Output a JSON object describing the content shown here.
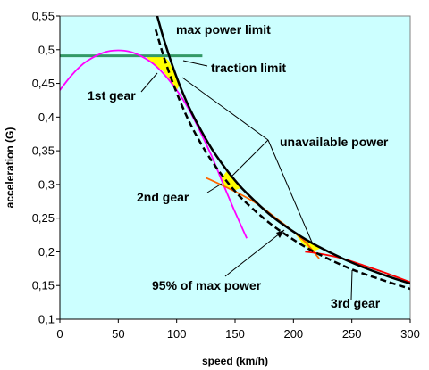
{
  "chart_data": {
    "type": "line",
    "title": "",
    "xlabel": "speed (km/h)",
    "ylabel": "acceleration (G)",
    "xlim": [
      0,
      300
    ],
    "ylim": [
      0.1,
      0.55
    ],
    "x_ticks": [
      0,
      50,
      100,
      150,
      200,
      250,
      300
    ],
    "x_tick_labels": [
      "0",
      "50",
      "100",
      "150",
      "200",
      "250",
      "300"
    ],
    "y_ticks": [
      0.1,
      0.15,
      0.2,
      0.25,
      0.3,
      0.35,
      0.4,
      0.45,
      0.5,
      0.55
    ],
    "y_tick_labels": [
      "0,1",
      "0,15",
      "0,2",
      "0,25",
      "0,3",
      "0,35",
      "0,4",
      "0,45",
      "0,5",
      "0,55"
    ],
    "grid": false,
    "background_color": "#ccffff",
    "series": [
      {
        "key": "max_power",
        "style": "solid",
        "color": "#000000",
        "x": [
          83,
          90,
          100,
          110,
          120,
          130,
          140,
          150,
          160,
          180,
          200,
          220,
          250,
          280,
          300
        ],
        "y": [
          0.552,
          0.51,
          0.459,
          0.417,
          0.383,
          0.353,
          0.328,
          0.306,
          0.287,
          0.255,
          0.23,
          0.209,
          0.184,
          0.164,
          0.153
        ]
      },
      {
        "key": "pct95_power",
        "style": "dashed",
        "color": "#000000",
        "x": [
          82,
          90,
          100,
          110,
          120,
          130,
          140,
          150,
          160,
          180,
          200,
          220,
          250,
          280,
          300
        ],
        "y": [
          0.53,
          0.484,
          0.436,
          0.396,
          0.363,
          0.335,
          0.311,
          0.29,
          0.272,
          0.242,
          0.218,
          0.198,
          0.174,
          0.156,
          0.145
        ]
      },
      {
        "key": "traction_limit",
        "style": "solid",
        "color": "#339966",
        "x": [
          0,
          122
        ],
        "y": [
          0.491,
          0.491
        ]
      },
      {
        "key": "gear_1",
        "style": "solid",
        "color": "#ff00ff",
        "x": [
          0,
          10,
          20,
          30,
          40,
          50,
          60,
          70,
          80,
          90,
          100,
          110,
          120,
          130,
          140,
          150,
          160
        ],
        "y": [
          0.44,
          0.462,
          0.479,
          0.49,
          0.497,
          0.499,
          0.497,
          0.49,
          0.479,
          0.462,
          0.44,
          0.413,
          0.379,
          0.342,
          0.3,
          0.259,
          0.22
        ]
      },
      {
        "key": "gear_2",
        "style": "solid",
        "color": "#ff6600",
        "x": [
          125,
          140,
          155,
          170,
          185,
          200,
          210,
          215,
          222
        ],
        "y": [
          0.31,
          0.298,
          0.285,
          0.27,
          0.25,
          0.23,
          0.215,
          0.205,
          0.19
        ]
      },
      {
        "key": "gear_3",
        "style": "solid",
        "color": "#ff0000",
        "x": [
          210,
          220,
          240,
          260,
          280,
          300
        ],
        "y": [
          0.2,
          0.198,
          0.191,
          0.18,
          0.168,
          0.155
        ]
      }
    ],
    "fills": [
      {
        "key": "gap_1",
        "color": "#ffff00",
        "points": [
          [
            73,
            0.491
          ],
          [
            88,
            0.491
          ],
          [
            93,
            0.484
          ],
          [
            100,
            0.459
          ],
          [
            103,
            0.449
          ],
          [
            100,
            0.44
          ],
          [
            95,
            0.453
          ],
          [
            88,
            0.469
          ],
          [
            80,
            0.479
          ]
        ]
      },
      {
        "key": "gap_2",
        "color": "#ffff00",
        "points": [
          [
            138,
            0.309
          ],
          [
            143,
            0.32
          ],
          [
            150,
            0.306
          ],
          [
            155,
            0.295
          ],
          [
            148,
            0.29
          ],
          [
            142,
            0.296
          ]
        ]
      },
      {
        "key": "gap_3",
        "color": "#ffff00",
        "points": [
          [
            200,
            0.23
          ],
          [
            212,
            0.216
          ],
          [
            220,
            0.209
          ],
          [
            223,
            0.205
          ],
          [
            216,
            0.2
          ],
          [
            208,
            0.212
          ]
        ]
      }
    ],
    "annotations": [
      {
        "key": "max_power_limit",
        "text": "max power limit"
      },
      {
        "key": "traction_limit",
        "text": "traction limit"
      },
      {
        "key": "gear_1",
        "text": "1st gear"
      },
      {
        "key": "unavailable_power",
        "text": "unavailable power"
      },
      {
        "key": "gear_2",
        "text": "2nd gear"
      },
      {
        "key": "pct95",
        "text": "95% of max power"
      },
      {
        "key": "gear_3",
        "text": "3rd gear"
      }
    ]
  }
}
